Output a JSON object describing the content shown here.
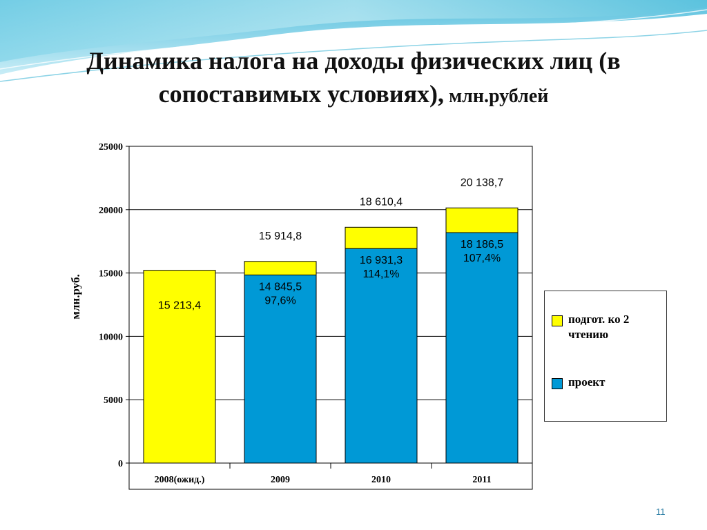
{
  "title": {
    "line1": "Динамика налога на доходы физических лиц (в",
    "line2": "сопоставимых условиях),",
    "unit": " млн.рублей"
  },
  "page_number": "11",
  "chart_data": {
    "type": "bar",
    "stacked": true,
    "categories": [
      "2008(ожид.)",
      "2009",
      "2010",
      "2011"
    ],
    "series": [
      {
        "name": "проект",
        "color": "#0099d6",
        "values": [
          0,
          14845.5,
          16931.3,
          18186.5
        ]
      },
      {
        "name": "подгот. ко 2 чтению",
        "color": "#ffff00",
        "values": [
          15213.4,
          1069.3,
          1679.1,
          1952.2
        ]
      }
    ],
    "totals": [
      15213.4,
      15914.8,
      18610.4,
      20138.7
    ],
    "total_labels": [
      "",
      "15 914,8",
      "18 610,4",
      "20 138,7"
    ],
    "inner_labels": [
      [
        "15 213,4"
      ],
      [
        "14 845,5",
        "97,6%"
      ],
      [
        "16 931,3",
        "114,1%"
      ],
      [
        "18 186,5",
        "107,4%"
      ]
    ],
    "ylabel": "млн.руб.",
    "ylim": [
      0,
      25000
    ],
    "yticks": [
      0,
      5000,
      10000,
      15000,
      20000,
      25000
    ],
    "grid": true,
    "legend_position": "right",
    "legend": [
      {
        "label": "подгот. ко 2 чтению",
        "color": "#ffff00"
      },
      {
        "label": "проект",
        "color": "#0099d6"
      }
    ]
  }
}
